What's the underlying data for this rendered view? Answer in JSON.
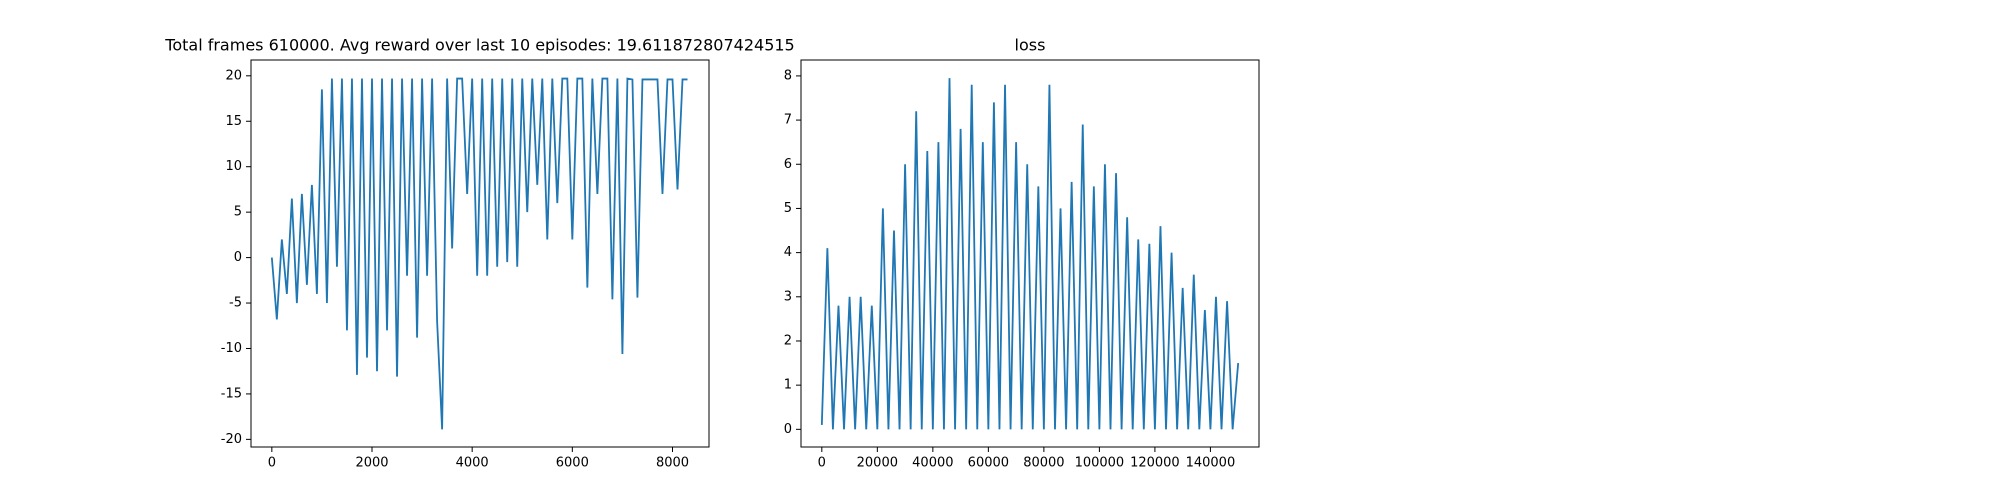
{
  "chart_data": [
    {
      "type": "line",
      "title": "Total frames 610000. Avg reward over last 10 episodes: 19.611872807424515",
      "color": "#1f77b4",
      "x": [
        0,
        100,
        200,
        300,
        400,
        500,
        600,
        700,
        800,
        900,
        1000,
        1100,
        1200,
        1300,
        1400,
        1500,
        1600,
        1700,
        1800,
        1900,
        2000,
        2100,
        2200,
        2300,
        2400,
        2500,
        2600,
        2700,
        2800,
        2900,
        3000,
        3100,
        3200,
        3300,
        3400,
        3500,
        3600,
        3700,
        3800,
        3900,
        4000,
        4100,
        4200,
        4300,
        4400,
        4500,
        4600,
        4700,
        4800,
        4900,
        5000,
        5100,
        5200,
        5300,
        5400,
        5500,
        5600,
        5700,
        5800,
        5900,
        6000,
        6100,
        6200,
        6300,
        6400,
        6500,
        6600,
        6700,
        6800,
        6900,
        7000,
        7100,
        7200,
        7300,
        7400,
        7500,
        7600,
        7700,
        7800,
        7900,
        8000,
        8100,
        8200,
        8300
      ],
      "values": [
        0,
        -6.8,
        2,
        -4,
        6.5,
        -5,
        7,
        -3,
        8,
        -4,
        18.5,
        -5,
        19.7,
        -1,
        19.7,
        -8,
        19.7,
        -12.9,
        19.7,
        -11,
        19.7,
        -12.5,
        19.7,
        -8,
        19.7,
        -13.1,
        19.7,
        -2,
        19.7,
        -8.8,
        19.7,
        -2,
        19.7,
        -7,
        -18.9,
        19.7,
        1,
        19.7,
        19.7,
        7,
        19.7,
        -2,
        19.7,
        -2,
        19.7,
        -1,
        19.7,
        -0.5,
        19.7,
        -1,
        19.7,
        5,
        19.7,
        8,
        19.7,
        2,
        19.7,
        6,
        19.7,
        19.7,
        2,
        19.7,
        19.7,
        -3.3,
        19.7,
        7,
        19.7,
        19.7,
        -4.6,
        19.7,
        -10.6,
        19.7,
        19.6,
        -4.4,
        19.6,
        19.6,
        19.6,
        19.6,
        7,
        19.6,
        19.6,
        7.5,
        19.6,
        19.6
      ],
      "xlim": [
        -416,
        8729
      ],
      "ylim": [
        -20.84,
        21.74
      ],
      "xticks": [
        0,
        2000,
        4000,
        6000,
        8000
      ],
      "yticks": [
        -20,
        -15,
        -10,
        -5,
        0,
        5,
        10,
        15,
        20
      ]
    },
    {
      "type": "line",
      "title": "loss",
      "color": "#1f77b4",
      "x": [
        0,
        2000,
        4000,
        6000,
        8000,
        10000,
        12000,
        14000,
        16000,
        18000,
        20000,
        22000,
        24000,
        26000,
        28000,
        30000,
        32000,
        34000,
        36000,
        38000,
        40000,
        42000,
        44000,
        46000,
        48000,
        50000,
        52000,
        54000,
        56000,
        58000,
        60000,
        62000,
        64000,
        66000,
        68000,
        70000,
        72000,
        74000,
        76000,
        78000,
        80000,
        82000,
        84000,
        86000,
        88000,
        90000,
        92000,
        94000,
        96000,
        98000,
        100000,
        102000,
        104000,
        106000,
        108000,
        110000,
        112000,
        114000,
        116000,
        118000,
        120000,
        122000,
        124000,
        126000,
        128000,
        130000,
        132000,
        134000,
        136000,
        138000,
        140000,
        142000,
        144000,
        146000,
        148000,
        150000
      ],
      "values": [
        0.1,
        4.1,
        0,
        2.8,
        0,
        3,
        0,
        3,
        0,
        2.8,
        0,
        5,
        0,
        4.5,
        0,
        6,
        0,
        7.2,
        0,
        6.3,
        0,
        6.5,
        0,
        7.95,
        0,
        6.8,
        0,
        7.8,
        0,
        6.5,
        0,
        7.4,
        0,
        7.8,
        0,
        6.5,
        0,
        6,
        0,
        5.5,
        0,
        7.8,
        0,
        5,
        0,
        5.6,
        0,
        6.9,
        0,
        5.5,
        0,
        6,
        0,
        5.8,
        0,
        4.8,
        0,
        4.3,
        0,
        4.2,
        0,
        4.6,
        0,
        4,
        0,
        3.2,
        0,
        3.5,
        0,
        2.7,
        0,
        3,
        0,
        2.9,
        0,
        1.5
      ],
      "xlim": [
        -7500,
        157500
      ],
      "ylim": [
        -0.4,
        8.36
      ],
      "xticks": [
        0,
        20000,
        40000,
        60000,
        80000,
        100000,
        120000,
        140000
      ],
      "yticks": [
        0,
        1,
        2,
        3,
        4,
        5,
        6,
        7,
        8
      ]
    }
  ]
}
